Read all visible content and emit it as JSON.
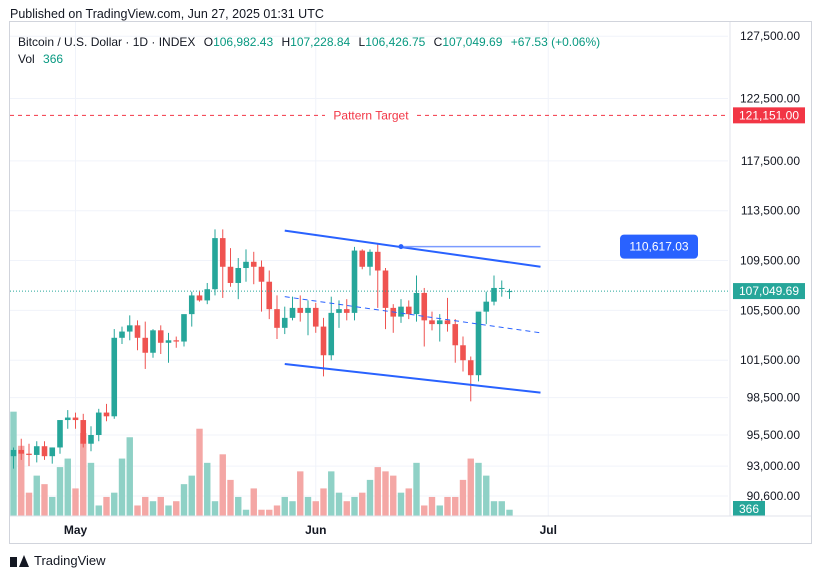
{
  "header": {
    "published": "Published on TradingView.com, Jun 27, 2025 01:31 UTC"
  },
  "legend": {
    "symbol": "Bitcoin / U.S. Dollar · 1D · INDEX",
    "o_label": "O",
    "o_value": "106,982.43",
    "h_label": "H",
    "h_value": "107,228.84",
    "l_label": "L",
    "l_value": "106,426.75",
    "c_label": "C",
    "c_value": "107,049.69",
    "change": "+67.53 (+0.06%)",
    "vol_label": "Vol",
    "vol_value": "366"
  },
  "footer": {
    "brand": "TradingView"
  },
  "colors": {
    "up": "#26a69a",
    "down": "#ef5350",
    "vol_up": "#8fd1c6",
    "vol_down": "#f4a7a5",
    "channel": "#2962ff",
    "target": "#f23645"
  },
  "chart_data": {
    "type": "candlestick",
    "ylim": [
      89000,
      128000
    ],
    "y_ticks": [
      127500,
      122500,
      117500,
      113500,
      109500,
      105500,
      101500,
      98500,
      95500,
      93000,
      90600
    ],
    "y_tick_labels": [
      "127,500.00",
      "122,500.00",
      "117,500.00",
      "113,500.00",
      "109,500.00",
      "105,500.00",
      "101,500.00",
      "98,500.00",
      "95,500.00",
      "93,000.00",
      "90,600.00"
    ],
    "x_labels": [
      {
        "label": "May",
        "day": 8
      },
      {
        "label": "Jun",
        "day": 39
      },
      {
        "label": "Jul",
        "day": 69
      }
    ],
    "start_date": "2025-04-23",
    "candles": [
      [
        93800,
        94500,
        92800,
        94300
      ],
      [
        94300,
        95200,
        93500,
        94000
      ],
      [
        94000,
        94800,
        93000,
        93900
      ],
      [
        93900,
        95000,
        93300,
        94600
      ],
      [
        94600,
        95000,
        93500,
        93800
      ],
      [
        93800,
        94500,
        93200,
        94500
      ],
      [
        94500,
        96500,
        94000,
        96700
      ],
      [
        96700,
        97500,
        96000,
        96900
      ],
      [
        96900,
        97300,
        96000,
        96700
      ],
      [
        96700,
        97200,
        94500,
        94800
      ],
      [
        94800,
        96200,
        94200,
        95500
      ],
      [
        95500,
        97600,
        95000,
        97300
      ],
      [
        97300,
        98000,
        96600,
        97000
      ],
      [
        97000,
        104000,
        96800,
        103300
      ],
      [
        103300,
        104200,
        102800,
        103800
      ],
      [
        103800,
        105100,
        103100,
        104300
      ],
      [
        104300,
        104700,
        102300,
        103300
      ],
      [
        103300,
        104600,
        100800,
        102100
      ],
      [
        102100,
        104000,
        101700,
        103900
      ],
      [
        103900,
        104300,
        102000,
        102900
      ],
      [
        102900,
        103700,
        101300,
        103100
      ],
      [
        103100,
        103400,
        102500,
        103000
      ],
      [
        103000,
        105000,
        102600,
        105200
      ],
      [
        105200,
        107000,
        104200,
        106700
      ],
      [
        106700,
        107100,
        106200,
        106300
      ],
      [
        106300,
        107700,
        106000,
        107200
      ],
      [
        107200,
        112000,
        106700,
        111300
      ],
      [
        111300,
        112000,
        106500,
        109000
      ],
      [
        109000,
        110500,
        107400,
        107700
      ],
      [
        107700,
        109700,
        106400,
        108900
      ],
      [
        108900,
        110400,
        107800,
        109400
      ],
      [
        109400,
        110200,
        107600,
        109000
      ],
      [
        109000,
        109500,
        105400,
        107800
      ],
      [
        107800,
        108700,
        104800,
        105600
      ],
      [
        105600,
        106700,
        103200,
        104100
      ],
      [
        104100,
        105800,
        103600,
        104900
      ],
      [
        104900,
        106600,
        104700,
        105700
      ],
      [
        105700,
        106700,
        104600,
        105300
      ],
      [
        105300,
        106300,
        103500,
        105700
      ],
      [
        105700,
        106100,
        103700,
        104200
      ],
      [
        104200,
        104900,
        100200,
        101900
      ],
      [
        101900,
        106600,
        101500,
        105300
      ],
      [
        105300,
        106300,
        104100,
        105600
      ],
      [
        105600,
        106400,
        104700,
        105300
      ],
      [
        105300,
        110600,
        104700,
        110300
      ],
      [
        110300,
        110400,
        108800,
        109000
      ],
      [
        109000,
        110400,
        108300,
        110200
      ],
      [
        110200,
        110800,
        105700,
        108700
      ],
      [
        108700,
        108900,
        104000,
        105700
      ],
      [
        105700,
        106000,
        103700,
        105000
      ],
      [
        105000,
        106400,
        104500,
        105800
      ],
      [
        105800,
        106300,
        104800,
        105200
      ],
      [
        105200,
        108300,
        104600,
        106900
      ],
      [
        106900,
        107300,
        102600,
        104700
      ],
      [
        104700,
        105400,
        103900,
        104400
      ],
      [
        104400,
        105200,
        103000,
        104700
      ],
      [
        104700,
        106500,
        103800,
        104400
      ],
      [
        104400,
        104800,
        101300,
        102700
      ],
      [
        102700,
        103400,
        100600,
        101500
      ],
      [
        101500,
        101800,
        98200,
        100300
      ],
      [
        100300,
        105200,
        99800,
        105400
      ],
      [
        105400,
        107000,
        104400,
        106200
      ],
      [
        106200,
        108300,
        105900,
        107300
      ],
      [
        107300,
        107900,
        106600,
        107300
      ],
      [
        106982.43,
        107228.84,
        106426.75,
        107049.69
      ]
    ],
    "volume": [
      24,
      16,
      5,
      9,
      7,
      4,
      11,
      13,
      6,
      19,
      12,
      2,
      4,
      5,
      13,
      18,
      2,
      4,
      3,
      4,
      2,
      3,
      7,
      9,
      20,
      12,
      3,
      14,
      8,
      4,
      1,
      6,
      1,
      1,
      2,
      4,
      3,
      10,
      4,
      3,
      6,
      10,
      5,
      3,
      4,
      5,
      8,
      11,
      10,
      9,
      5,
      6,
      12,
      2,
      4,
      2,
      4,
      4,
      8,
      13,
      12,
      9,
      3,
      3,
      1
    ],
    "up_flags": [
      1,
      0,
      0,
      1,
      0,
      1,
      1,
      1,
      0,
      0,
      1,
      1,
      0,
      1,
      1,
      1,
      0,
      0,
      1,
      0,
      1,
      0,
      1,
      1,
      0,
      1,
      1,
      0,
      0,
      1,
      1,
      0,
      0,
      0,
      0,
      1,
      1,
      0,
      1,
      0,
      0,
      1,
      1,
      0,
      1,
      0,
      1,
      0,
      0,
      0,
      1,
      0,
      1,
      0,
      0,
      1,
      0,
      0,
      0,
      0,
      1,
      1,
      1,
      1,
      1
    ],
    "channel_upper": [
      [
        35,
        111900
      ],
      [
        68,
        109000
      ]
    ],
    "channel_lower": [
      [
        35,
        101200
      ],
      [
        68,
        98900
      ]
    ],
    "channel_mid": [
      [
        35,
        106600
      ],
      [
        68,
        103700
      ]
    ],
    "resistance": {
      "from_day": 50,
      "to_day": 68,
      "value": 110617.03,
      "label": "110,617.03"
    },
    "pattern_target": {
      "value": 121151.0,
      "label": "121,151.00",
      "text": "Pattern Target"
    },
    "last_price": {
      "value": 107049.69,
      "label": "107,049.69"
    },
    "last_volume": {
      "label": "366"
    }
  }
}
